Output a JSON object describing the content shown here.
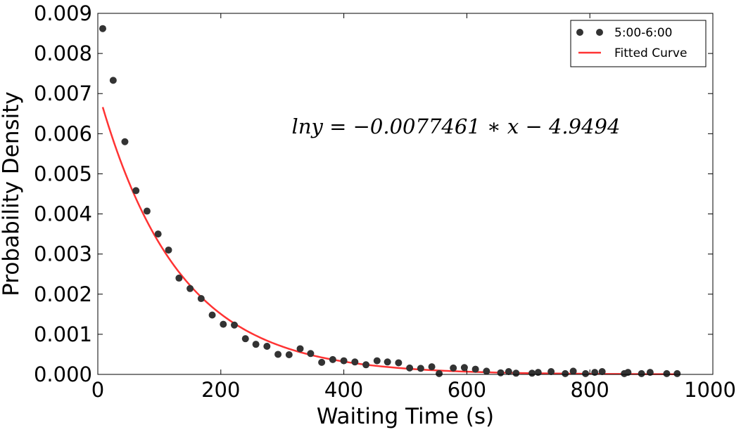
{
  "chart_data": {
    "type": "scatter",
    "xlabel": "Waiting Time (s)",
    "ylabel": "Probability Density",
    "xlim": [
      0,
      1000
    ],
    "ylim": [
      0,
      0.009
    ],
    "x_ticks": [
      0,
      200,
      400,
      600,
      800,
      1000
    ],
    "x_tick_labels": [
      "0",
      "200",
      "400",
      "600",
      "800",
      "1000"
    ],
    "y_ticks": [
      0,
      0.001,
      0.002,
      0.003,
      0.004,
      0.005,
      0.006,
      0.007,
      0.008,
      0.009
    ],
    "y_tick_labels": [
      "0.000",
      "0.001",
      "0.002",
      "0.003",
      "0.004",
      "0.005",
      "0.006",
      "0.007",
      "0.008",
      "0.009"
    ],
    "grid": false,
    "legend_position": "top-right",
    "annotation": "lny = −0.0077461 ∗ x − 4.9494",
    "series": [
      {
        "name": "5:00-6:00",
        "kind": "scatter",
        "color": "#333333",
        "points": [
          [
            8,
            0.00862
          ],
          [
            25,
            0.00733
          ],
          [
            44,
            0.0058
          ],
          [
            62,
            0.00458
          ],
          [
            80,
            0.00407
          ],
          [
            98,
            0.0035
          ],
          [
            115,
            0.0031
          ],
          [
            132,
            0.0024
          ],
          [
            150,
            0.00214
          ],
          [
            168,
            0.00189
          ],
          [
            186,
            0.00148
          ],
          [
            204,
            0.00125
          ],
          [
            222,
            0.00123
          ],
          [
            240,
            0.00089
          ],
          [
            257,
            0.00075
          ],
          [
            275,
            0.0007
          ],
          [
            293,
            0.0005
          ],
          [
            311,
            0.00049
          ],
          [
            329,
            0.00064
          ],
          [
            346,
            0.00052
          ],
          [
            364,
            0.0003
          ],
          [
            382,
            0.00037
          ],
          [
            400,
            0.00034
          ],
          [
            418,
            0.00031
          ],
          [
            436,
            0.00024
          ],
          [
            454,
            0.00034
          ],
          [
            471,
            0.00031
          ],
          [
            489,
            0.00029
          ],
          [
            507,
            0.00016
          ],
          [
            525,
            0.00015
          ],
          [
            543,
            0.00019
          ],
          [
            555,
            2e-05
          ],
          [
            578,
            0.00016
          ],
          [
            596,
            0.00017
          ],
          [
            614,
            0.00013
          ],
          [
            632,
            8e-05
          ],
          [
            655,
            4e-05
          ],
          [
            668,
            7e-05
          ],
          [
            680,
            3e-05
          ],
          [
            706,
            3e-05
          ],
          [
            716,
            5e-05
          ],
          [
            737,
            7e-05
          ],
          [
            760,
            2e-05
          ],
          [
            773,
            8e-05
          ],
          [
            793,
            2e-05
          ],
          [
            808,
            5e-05
          ],
          [
            820,
            7e-05
          ],
          [
            856,
            2e-05
          ],
          [
            862,
            5e-05
          ],
          [
            884,
            2e-05
          ],
          [
            898,
            5e-05
          ],
          [
            925,
            2e-05
          ],
          [
            942,
            2e-05
          ]
        ]
      },
      {
        "name": "Fitted Curve",
        "kind": "line",
        "color": "#ff3333",
        "fit": {
          "slope": -0.0077461,
          "intercept": -4.9494,
          "x_start": 8,
          "x_end": 942
        }
      }
    ]
  }
}
